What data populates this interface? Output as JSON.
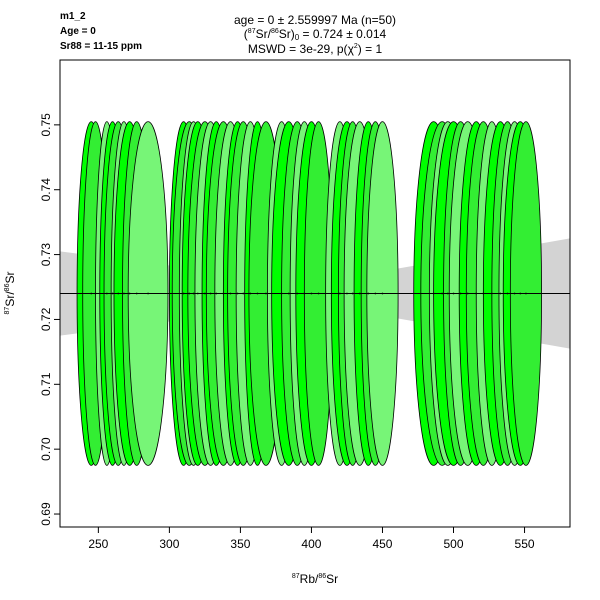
{
  "sample_info": {
    "sample": "m1_2",
    "age_line": "Age = 0",
    "sr_line": "Sr88 = 11-15 ppm"
  },
  "titles": {
    "line1": "age = 0 ± 2.559997 Ma (n=50)",
    "line2_prefix": "(",
    "line2_iso1": "87",
    "line2_el1": "Sr/",
    "line2_iso2": "86",
    "line2_el2": "Sr)",
    "line2_sub": "0",
    "line2_value": " = 0.724 ± 0.014",
    "line3_prefix": "MSWD = 3e-29, p(",
    "line3_chi": "χ",
    "line3_exp": "2",
    "line3_suffix": ") = 1"
  },
  "axis_labels": {
    "x_iso1": "87",
    "x_el1": "Rb/",
    "x_iso2": "86",
    "x_el2": "Sr",
    "y_iso1": "87",
    "y_el1": "Sr/",
    "y_iso2": "86",
    "y_el2": "Sr"
  },
  "colors": {
    "ellipse_bright": "#00ff00",
    "ellipse_mid": "#33ee33",
    "ellipse_light": "#77f577",
    "envelope": "#d3d3d3",
    "line": "#000000"
  },
  "chart_data": {
    "type": "scatter",
    "subtype": "isochron_error_ellipses",
    "n": 50,
    "xlim": [
      223,
      582
    ],
    "ylim": [
      0.688,
      0.76
    ],
    "x_ticks": [
      250,
      300,
      350,
      400,
      450,
      500,
      550
    ],
    "y_ticks": [
      0.69,
      0.7,
      0.71,
      0.72,
      0.73,
      0.74,
      0.75
    ],
    "isochron": {
      "intercept": 0.724,
      "slope": 0
    },
    "envelope": {
      "x": [
        223,
        400,
        582
      ],
      "upper": [
        0.7305,
        0.7255,
        0.7325
      ],
      "lower": [
        0.7175,
        0.7225,
        0.7155
      ]
    },
    "ellipse_y_center": 0.724,
    "ellipse_y_halfwidth": 0.0265,
    "ellipses": [
      {
        "x": 245,
        "rx": 10
      },
      {
        "x": 248,
        "rx": 9
      },
      {
        "x": 256,
        "rx": 8
      },
      {
        "x": 260,
        "rx": 9
      },
      {
        "x": 264,
        "rx": 10
      },
      {
        "x": 268,
        "rx": 9
      },
      {
        "x": 272,
        "rx": 11
      },
      {
        "x": 277,
        "rx": 10
      },
      {
        "x": 285,
        "rx": 14
      },
      {
        "x": 310,
        "rx": 10
      },
      {
        "x": 314,
        "rx": 12
      },
      {
        "x": 317,
        "rx": 10
      },
      {
        "x": 320,
        "rx": 11
      },
      {
        "x": 325,
        "rx": 12
      },
      {
        "x": 329,
        "rx": 11
      },
      {
        "x": 333,
        "rx": 10
      },
      {
        "x": 338,
        "rx": 12
      },
      {
        "x": 343,
        "rx": 11
      },
      {
        "x": 348,
        "rx": 10
      },
      {
        "x": 352,
        "rx": 11
      },
      {
        "x": 357,
        "rx": 10
      },
      {
        "x": 362,
        "rx": 9
      },
      {
        "x": 368,
        "rx": 12
      },
      {
        "x": 379,
        "rx": 10
      },
      {
        "x": 384,
        "rx": 12
      },
      {
        "x": 390,
        "rx": 11
      },
      {
        "x": 395,
        "rx": 10
      },
      {
        "x": 400,
        "rx": 11
      },
      {
        "x": 405,
        "rx": 10
      },
      {
        "x": 420,
        "rx": 10
      },
      {
        "x": 425,
        "rx": 11
      },
      {
        "x": 429,
        "rx": 10
      },
      {
        "x": 434,
        "rx": 11
      },
      {
        "x": 440,
        "rx": 10
      },
      {
        "x": 445,
        "rx": 10
      },
      {
        "x": 450,
        "rx": 11
      },
      {
        "x": 486,
        "rx": 14
      },
      {
        "x": 492,
        "rx": 15
      },
      {
        "x": 496,
        "rx": 13
      },
      {
        "x": 500,
        "rx": 14
      },
      {
        "x": 505,
        "rx": 12
      },
      {
        "x": 510,
        "rx": 13
      },
      {
        "x": 516,
        "rx": 12
      },
      {
        "x": 521,
        "rx": 12
      },
      {
        "x": 527,
        "rx": 11
      },
      {
        "x": 533,
        "rx": 12
      },
      {
        "x": 538,
        "rx": 11
      },
      {
        "x": 543,
        "rx": 11
      },
      {
        "x": 547,
        "rx": 12
      },
      {
        "x": 551,
        "rx": 11
      }
    ]
  }
}
